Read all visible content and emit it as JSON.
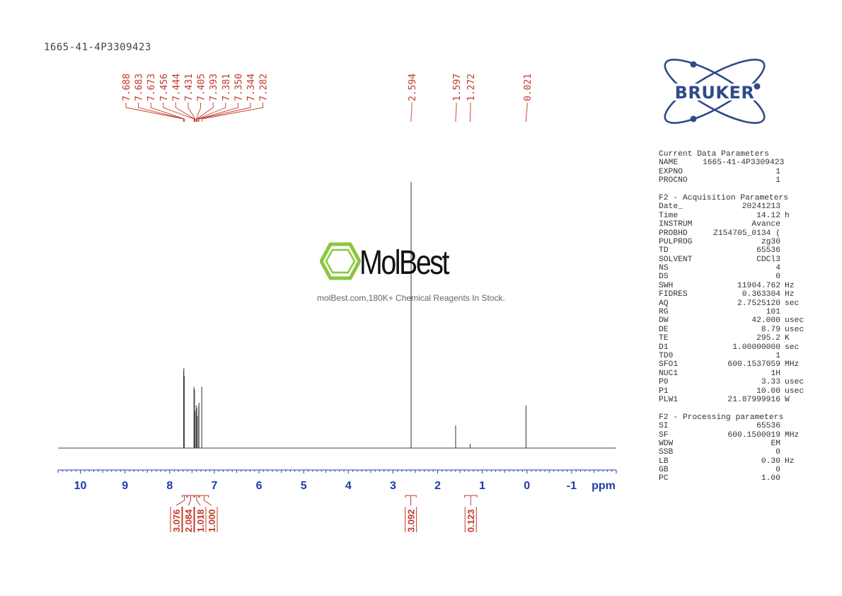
{
  "header": {
    "sample_id": "1665-41-4P3309423"
  },
  "logo": {
    "text": "BRUKER",
    "color": "#2f4a8a"
  },
  "watermark": {
    "name": "MolBest",
    "tagline": "molBest.com,180K+ Chemical Reagents In Stock.",
    "icon_color": "#8cc63e"
  },
  "colors": {
    "axis": "#1e3da8",
    "peak_labels": "#c0392b",
    "trace": "#444444"
  },
  "chart_data": {
    "type": "line",
    "xlabel": "ppm",
    "xlim": [
      10.5,
      -2.0
    ],
    "x_reversed": true,
    "x_ticks": [
      "10",
      "9",
      "8",
      "7",
      "6",
      "5",
      "4",
      "3",
      "2",
      "1",
      "0",
      "-1"
    ],
    "peak_labels": [
      "7.688",
      "7.683",
      "7.673",
      "7.456",
      "7.444",
      "7.431",
      "7.405",
      "7.393",
      "7.381",
      "7.350",
      "7.344",
      "7.282",
      "2.594",
      "1.597",
      "1.272",
      "0.021"
    ],
    "peaks": [
      {
        "ppm": 7.688,
        "height": 0.29
      },
      {
        "ppm": 7.683,
        "height": 0.3
      },
      {
        "ppm": 7.673,
        "height": 0.27
      },
      {
        "ppm": 7.456,
        "height": 0.23
      },
      {
        "ppm": 7.444,
        "height": 0.22
      },
      {
        "ppm": 7.431,
        "height": 0.14
      },
      {
        "ppm": 7.405,
        "height": 0.16
      },
      {
        "ppm": 7.393,
        "height": 0.15
      },
      {
        "ppm": 7.381,
        "height": 0.12
      },
      {
        "ppm": 7.35,
        "height": 0.16
      },
      {
        "ppm": 7.344,
        "height": 0.17
      },
      {
        "ppm": 7.282,
        "height": 0.23
      },
      {
        "ppm": 2.594,
        "height": 1.0
      },
      {
        "ppm": 1.597,
        "height": 0.085
      },
      {
        "ppm": 1.272,
        "height": 0.016
      },
      {
        "ppm": 0.021,
        "height": 0.16
      }
    ],
    "integrals": [
      {
        "value": "3.076",
        "from": 7.72,
        "to": 7.62
      },
      {
        "value": "2.084",
        "from": 7.6,
        "to": 7.46
      },
      {
        "value": "1.018",
        "from": 7.44,
        "to": 7.35
      },
      {
        "value": "1.000",
        "from": 7.33,
        "to": 7.13
      },
      {
        "value": "3.092",
        "from": 2.72,
        "to": 2.48
      },
      {
        "value": "0.123",
        "from": 1.4,
        "to": 1.12
      }
    ]
  },
  "parameters": {
    "sections": [
      {
        "title": "Current Data Parameters",
        "rows": [
          {
            "name": "NAME",
            "value": "1665-41-4P3309423",
            "unit": ""
          },
          {
            "name": "EXPNO",
            "value": "1",
            "unit": ""
          },
          {
            "name": "PROCNO",
            "value": "1",
            "unit": ""
          }
        ]
      },
      {
        "title": "F2 - Acquisition Parameters",
        "rows": [
          {
            "name": "Date_",
            "value": "20241213",
            "unit": ""
          },
          {
            "name": "Time",
            "value": "14.12",
            "unit": "h"
          },
          {
            "name": "INSTRUM",
            "value": "Avance",
            "unit": ""
          },
          {
            "name": "PROBHD",
            "value": "Z154705_0134 (",
            "unit": ""
          },
          {
            "name": "PULPROG",
            "value": "zg30",
            "unit": ""
          },
          {
            "name": "TD",
            "value": "65536",
            "unit": ""
          },
          {
            "name": "SOLVENT",
            "value": "CDCl3",
            "unit": ""
          },
          {
            "name": "NS",
            "value": "4",
            "unit": ""
          },
          {
            "name": "DS",
            "value": "0",
            "unit": ""
          },
          {
            "name": "SWH",
            "value": "11904.762",
            "unit": "Hz"
          },
          {
            "name": "FIDRES",
            "value": "0.363304",
            "unit": "Hz"
          },
          {
            "name": "AQ",
            "value": "2.7525120",
            "unit": "sec"
          },
          {
            "name": "RG",
            "value": "101",
            "unit": ""
          },
          {
            "name": "DW",
            "value": "42.000",
            "unit": "usec"
          },
          {
            "name": "DE",
            "value": "8.79",
            "unit": "usec"
          },
          {
            "name": "TE",
            "value": "295.2",
            "unit": "K"
          },
          {
            "name": "D1",
            "value": "1.00000000",
            "unit": "sec"
          },
          {
            "name": "TD0",
            "value": "1",
            "unit": ""
          },
          {
            "name": "SFO1",
            "value": "600.1537059",
            "unit": "MHz"
          },
          {
            "name": "NUC1",
            "value": "1H",
            "unit": ""
          },
          {
            "name": "P0",
            "value": "3.33",
            "unit": "usec"
          },
          {
            "name": "P1",
            "value": "10.00",
            "unit": "usec"
          },
          {
            "name": "PLW1",
            "value": "21.87999916",
            "unit": "W"
          }
        ]
      },
      {
        "title": "F2 - Processing parameters",
        "rows": [
          {
            "name": "SI",
            "value": "65536",
            "unit": ""
          },
          {
            "name": "SF",
            "value": "600.1500019",
            "unit": "MHz"
          },
          {
            "name": "WDW",
            "value": "EM",
            "unit": ""
          },
          {
            "name": "SSB",
            "value": "0",
            "unit": ""
          },
          {
            "name": "LB",
            "value": "0.30",
            "unit": "Hz"
          },
          {
            "name": "GB",
            "value": "0",
            "unit": ""
          },
          {
            "name": "PC",
            "value": "1.00",
            "unit": ""
          }
        ]
      }
    ]
  }
}
